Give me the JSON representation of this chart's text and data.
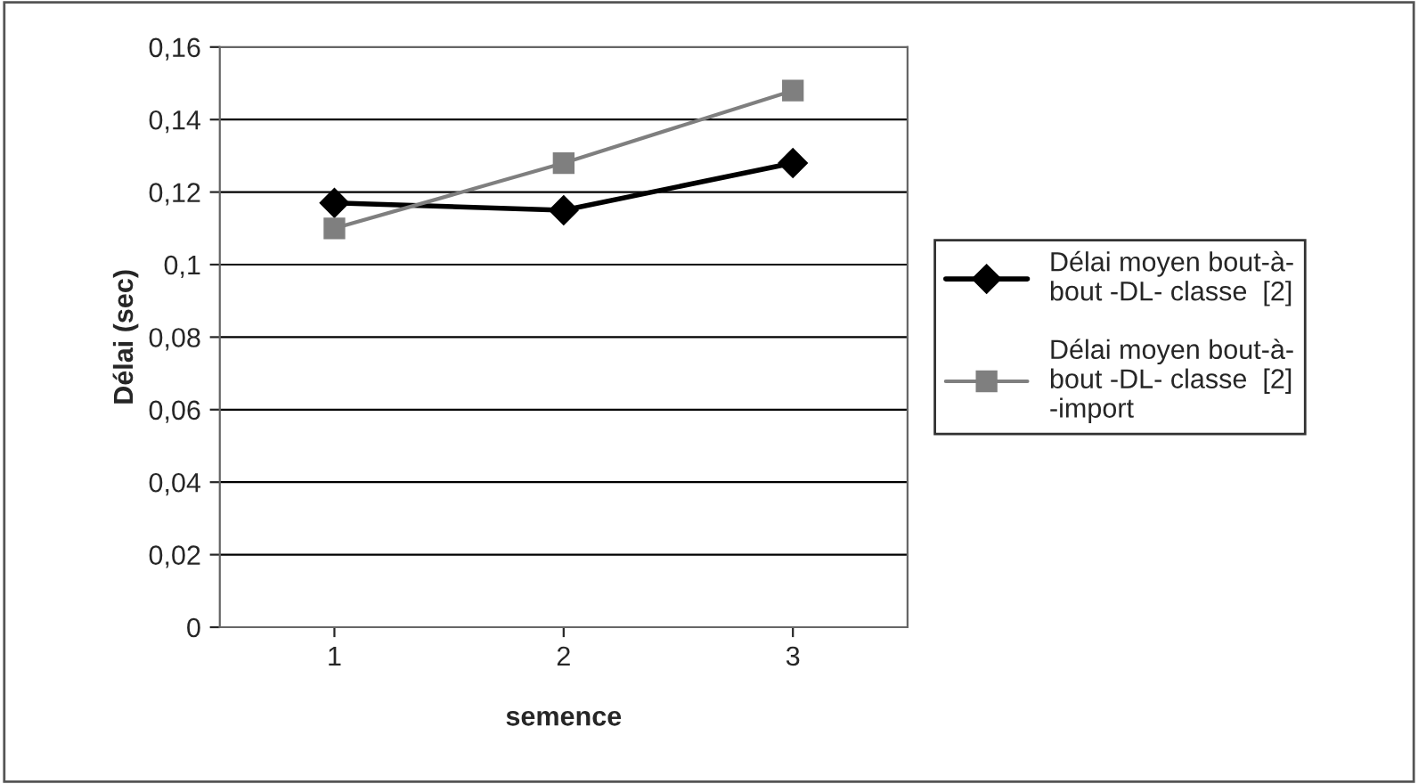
{
  "chart_data": {
    "type": "line",
    "xlabel": "semence",
    "ylabel": "Délai (sec)",
    "categories": [
      "1",
      "2",
      "3"
    ],
    "series": [
      {
        "name": "Délai moyen bout-à-\nbout -DL- classe  [2]",
        "color": "#000000",
        "marker": "diamond",
        "values": [
          0.117,
          0.115,
          0.128
        ]
      },
      {
        "name": "Délai moyen bout-à-\nbout -DL- classe  [2]\n-import",
        "color": "#7f7f7f",
        "marker": "square",
        "values": [
          0.11,
          0.128,
          0.148
        ]
      }
    ],
    "ylim": [
      0,
      0.16
    ],
    "yticks": [
      {
        "value": 0,
        "label": "0"
      },
      {
        "value": 0.02,
        "label": "0,02"
      },
      {
        "value": 0.04,
        "label": "0,04"
      },
      {
        "value": 0.06,
        "label": "0,06"
      },
      {
        "value": 0.08,
        "label": "0,08"
      },
      {
        "value": 0.1,
        "label": "0,1"
      },
      {
        "value": 0.12,
        "label": "0,12"
      },
      {
        "value": 0.14,
        "label": "0,14"
      },
      {
        "value": 0.16,
        "label": "0,16"
      }
    ],
    "grid": "y",
    "legend": "right"
  }
}
